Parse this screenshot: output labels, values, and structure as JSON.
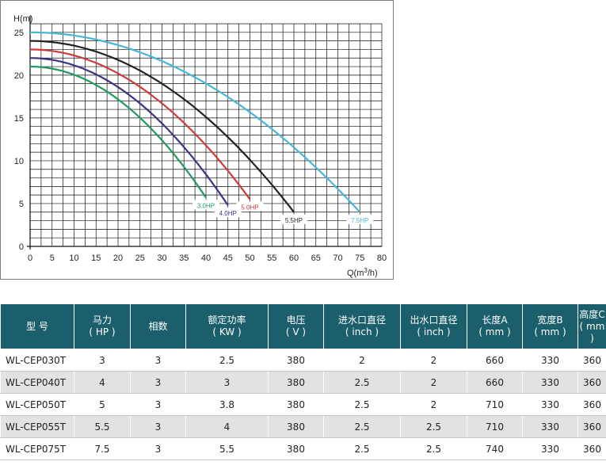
{
  "colors": {
    "header_bg": "#1b5e6c",
    "row_alt": "#e2e2e2",
    "curve_3hp": "#1f9a5e",
    "curve_4hp": "#3a3585",
    "curve_5hp": "#cf3a3a",
    "curve_5_5hp": "#222222",
    "curve_7_5hp": "#46b6d8"
  },
  "chart_data": {
    "type": "line",
    "ylabel": "H(m)",
    "xlabel_main": "Q(m",
    "xlabel_sup": "3",
    "xlabel_tail": "/h)",
    "xlim": [
      0,
      80
    ],
    "ylim": [
      0,
      26
    ],
    "x_ticks": [
      "0",
      "5",
      "10",
      "15",
      "20",
      "25",
      "30",
      "35",
      "40",
      "45",
      "50",
      "55",
      "60",
      "65",
      "70",
      "75",
      "80"
    ],
    "y_ticks": [
      "0",
      "5",
      "10",
      "15",
      "20",
      "25"
    ],
    "grid": true,
    "series": [
      {
        "name": "3.0HP",
        "color": "#1f9a5e",
        "x": [
          0,
          40
        ],
        "y": [
          21,
          5.7
        ]
      },
      {
        "name": "4.0HP",
        "color": "#3a3585",
        "x": [
          0,
          45
        ],
        "y": [
          22,
          4.8
        ]
      },
      {
        "name": "5.0HP",
        "color": "#cf3a3a",
        "x": [
          0,
          50
        ],
        "y": [
          23,
          5.5
        ]
      },
      {
        "name": "5.5HP",
        "color": "#222222",
        "x": [
          0,
          60
        ],
        "y": [
          24,
          4
        ]
      },
      {
        "name": "7.5HP",
        "color": "#46b6d8",
        "x": [
          0,
          75
        ],
        "y": [
          25,
          4
        ]
      }
    ]
  },
  "table": {
    "headers": [
      {
        "l1": "型  号",
        "l2": ""
      },
      {
        "l1": "马力",
        "l2": "( HP )"
      },
      {
        "l1": "相数",
        "l2": ""
      },
      {
        "l1": "额定功率",
        "l2": "( KW )"
      },
      {
        "l1": "电压",
        "l2": "( V )"
      },
      {
        "l1": "进水口直径",
        "l2": "( inch )"
      },
      {
        "l1": "出水口直径",
        "l2": "( inch )"
      },
      {
        "l1": "长度A",
        "l2": "( mm )"
      },
      {
        "l1": "宽度B",
        "l2": "( mm )"
      },
      {
        "l1": "高度C",
        "l2": "( mm )"
      }
    ],
    "rows": [
      [
        "WL-CEP030T",
        "3",
        "3",
        "2.5",
        "380",
        "2",
        "2",
        "660",
        "330",
        "360"
      ],
      [
        "WL-CEP040T",
        "4",
        "3",
        "3",
        "380",
        "2.5",
        "2",
        "660",
        "330",
        "360"
      ],
      [
        "WL-CEP050T",
        "5",
        "3",
        "3.8",
        "380",
        "2.5",
        "2",
        "710",
        "330",
        "360"
      ],
      [
        "WL-CEP055T",
        "5.5",
        "3",
        "4",
        "380",
        "2.5",
        "2.5",
        "710",
        "330",
        "360"
      ],
      [
        "WL-CEP075T",
        "7.5",
        "3",
        "5.5",
        "380",
        "2.5",
        "2.5",
        "740",
        "330",
        "360"
      ]
    ]
  }
}
